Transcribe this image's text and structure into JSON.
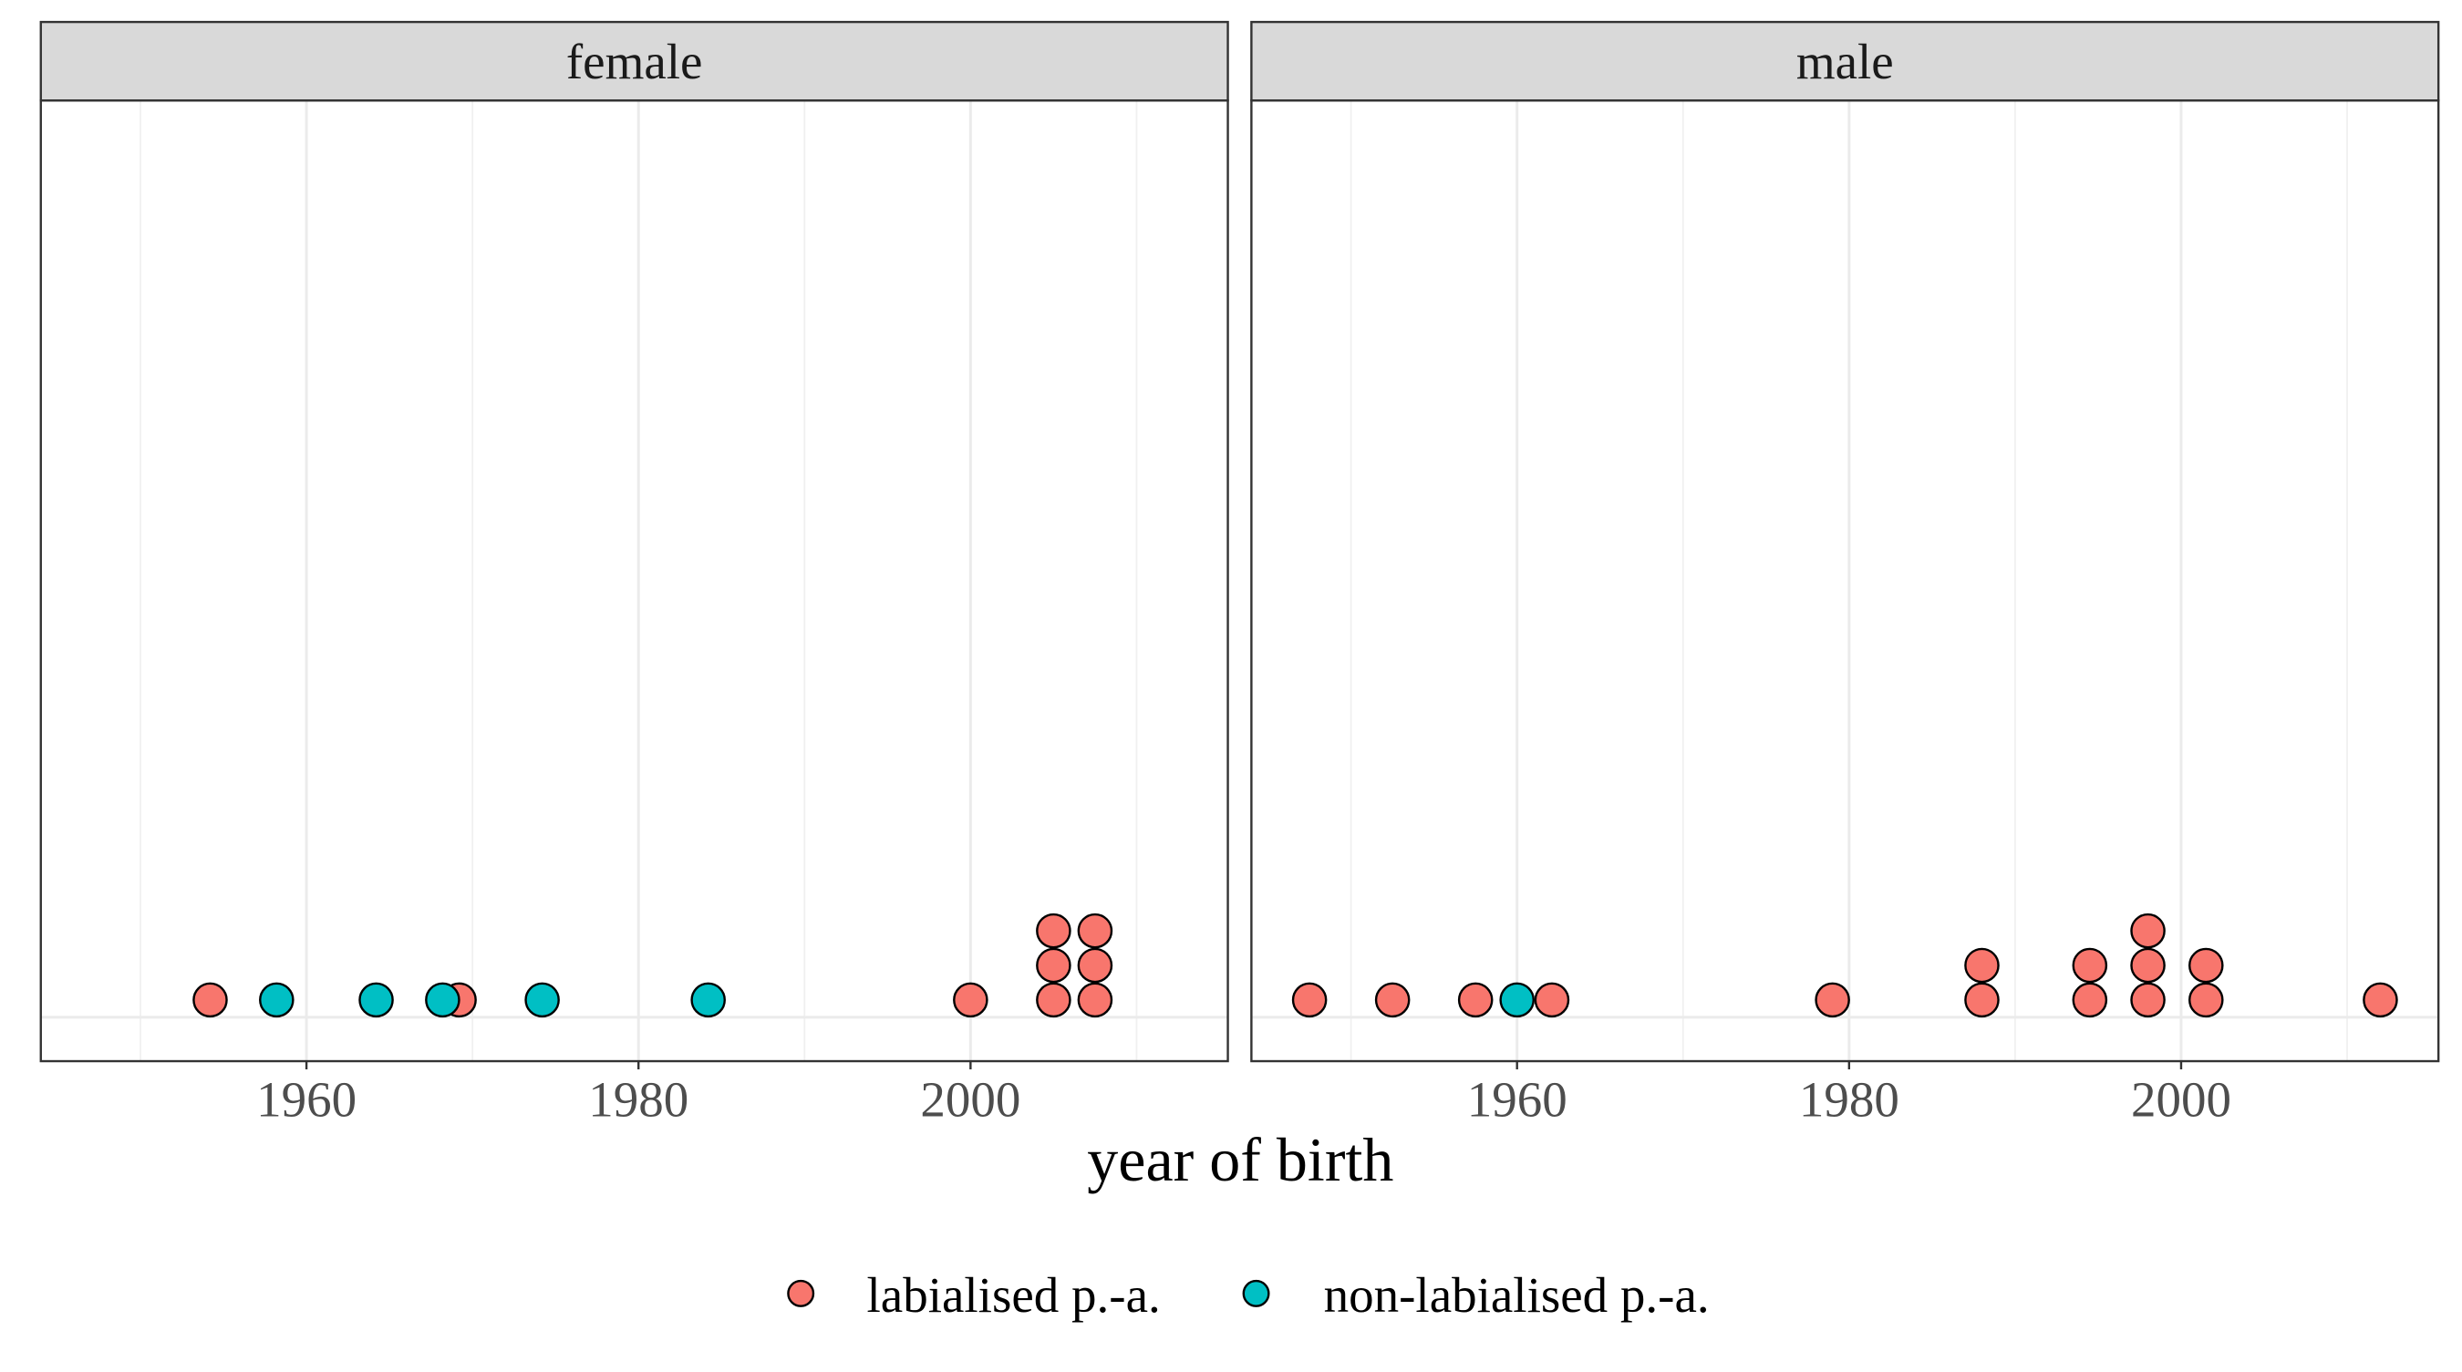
{
  "chart_data": {
    "type": "scatter",
    "subtype": "dotplot",
    "xlabel": "year of birth",
    "xticks": [
      "1960",
      "1980",
      "2000"
    ],
    "xtick_values": [
      1960,
      1980,
      2000
    ],
    "xlim": [
      1944,
      2015.5
    ],
    "grid": true,
    "legend_position": "bottom",
    "series": [
      {
        "name": "labialised p.-a.",
        "color": "#F8766D"
      },
      {
        "name": "non-labialised p.-a.",
        "color": "#00BFC4"
      }
    ],
    "panels": [
      {
        "title": "female",
        "points": [
          {
            "x": 1954.2,
            "stack": 0,
            "series": 0
          },
          {
            "x": 1958.2,
            "stack": 0,
            "series": 1
          },
          {
            "x": 1964.2,
            "stack": 0,
            "series": 1
          },
          {
            "x": 1969.2,
            "stack": 0,
            "series": 0
          },
          {
            "x": 1968.2,
            "stack": 0,
            "series": 1
          },
          {
            "x": 1974.2,
            "stack": 0,
            "series": 1
          },
          {
            "x": 1984.2,
            "stack": 0,
            "series": 1
          },
          {
            "x": 2000.0,
            "stack": 0,
            "series": 0
          },
          {
            "x": 2005.0,
            "stack": 0,
            "series": 0
          },
          {
            "x": 2005.0,
            "stack": 1,
            "series": 0
          },
          {
            "x": 2005.0,
            "stack": 2,
            "series": 0
          },
          {
            "x": 2007.5,
            "stack": 0,
            "series": 0
          },
          {
            "x": 2007.5,
            "stack": 1,
            "series": 0
          },
          {
            "x": 2007.5,
            "stack": 2,
            "series": 0
          }
        ]
      },
      {
        "title": "male",
        "points": [
          {
            "x": 1947.5,
            "stack": 0,
            "series": 0
          },
          {
            "x": 1952.5,
            "stack": 0,
            "series": 0
          },
          {
            "x": 1957.5,
            "stack": 0,
            "series": 0
          },
          {
            "x": 1962.1,
            "stack": 0,
            "series": 0
          },
          {
            "x": 1960.0,
            "stack": 0,
            "series": 1
          },
          {
            "x": 1979.0,
            "stack": 0,
            "series": 0
          },
          {
            "x": 1988.0,
            "stack": 0,
            "series": 0
          },
          {
            "x": 1988.0,
            "stack": 1,
            "series": 0
          },
          {
            "x": 1994.5,
            "stack": 0,
            "series": 0
          },
          {
            "x": 1994.5,
            "stack": 1,
            "series": 0
          },
          {
            "x": 1998.0,
            "stack": 0,
            "series": 0
          },
          {
            "x": 1998.0,
            "stack": 1,
            "series": 0
          },
          {
            "x": 1998.0,
            "stack": 2,
            "series": 0
          },
          {
            "x": 2001.5,
            "stack": 0,
            "series": 0
          },
          {
            "x": 2001.5,
            "stack": 1,
            "series": 0
          },
          {
            "x": 2012.0,
            "stack": 0,
            "series": 0
          }
        ]
      }
    ]
  }
}
